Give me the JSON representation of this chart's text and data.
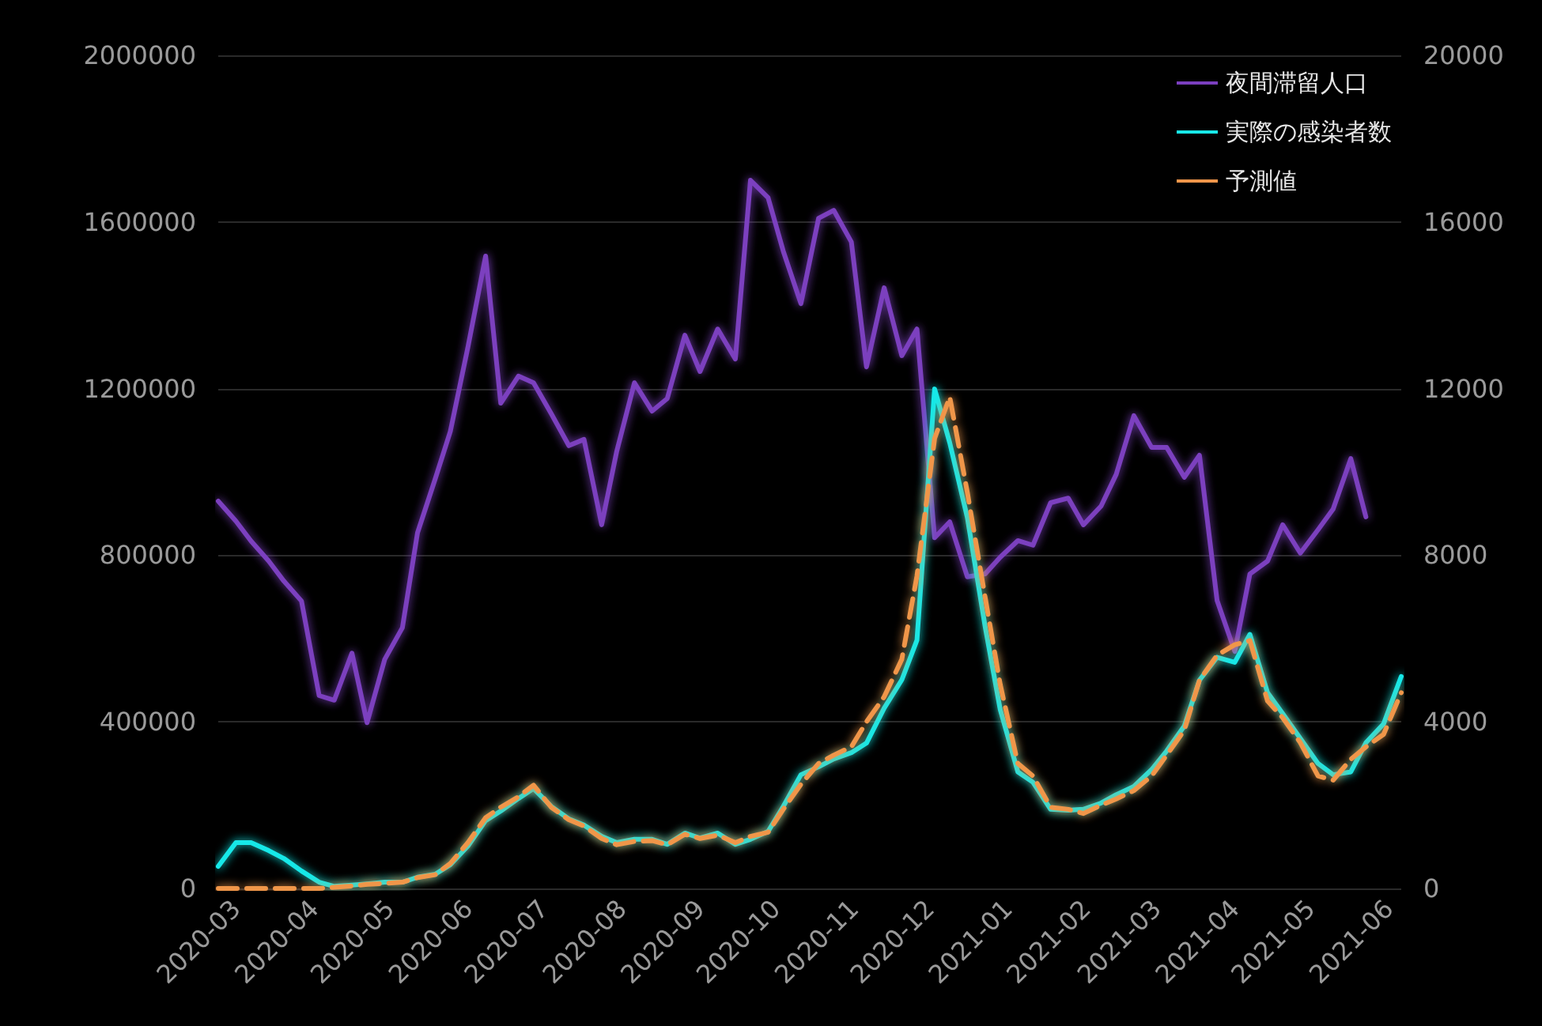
{
  "chart_data": {
    "type": "line",
    "x": [
      "2020-02-23",
      "2020-03-01",
      "2020-03-07",
      "2020-03-14",
      "2020-03-20",
      "2020-03-27",
      "2020-04-03",
      "2020-04-09",
      "2020-04-16",
      "2020-04-22",
      "2020-04-29",
      "2020-05-06",
      "2020-05-12",
      "2020-05-19",
      "2020-05-25",
      "2020-06-01",
      "2020-06-08",
      "2020-06-14",
      "2020-06-21",
      "2020-06-27",
      "2020-07-04",
      "2020-07-11",
      "2020-07-17",
      "2020-07-24",
      "2020-07-30",
      "2020-08-06",
      "2020-08-13",
      "2020-08-19",
      "2020-08-26",
      "2020-09-01",
      "2020-09-08",
      "2020-09-15",
      "2020-09-21",
      "2020-09-28",
      "2020-10-04",
      "2020-10-11",
      "2020-10-18",
      "2020-10-24",
      "2020-10-31",
      "2020-11-06",
      "2020-11-13",
      "2020-11-20",
      "2020-11-26",
      "2020-12-03",
      "2020-12-09",
      "2020-12-16",
      "2020-12-23",
      "2020-12-29",
      "2021-01-05",
      "2021-01-11",
      "2021-01-18",
      "2021-01-25",
      "2021-01-31",
      "2021-02-07",
      "2021-02-13",
      "2021-02-20",
      "2021-02-27",
      "2021-03-05",
      "2021-03-12",
      "2021-03-18",
      "2021-03-25",
      "2021-04-01",
      "2021-04-07",
      "2021-04-14",
      "2021-04-20",
      "2021-04-27",
      "2021-05-04",
      "2021-05-10",
      "2021-05-17",
      "2021-05-23",
      "2021-05-30",
      "2021-06-06"
    ],
    "series": [
      {
        "name": "夜間滞留人口",
        "color": "#7b3fbf",
        "values": [
          930000,
          882000,
          834000,
          786000,
          738000,
          690000,
          463000,
          452000,
          565000,
          398000,
          550000,
          626000,
          854000,
          983000,
          1097000,
          1300000,
          1518000,
          1165000,
          1230000,
          1214000,
          1140000,
          1063000,
          1078000,
          873000,
          1050000,
          1214000,
          1146000,
          1176000,
          1328000,
          1241000,
          1343000,
          1271000,
          1700000,
          1658000,
          1530000,
          1404000,
          1609000,
          1628000,
          1552000,
          1252000,
          1442000,
          1279000,
          1343000,
          842000,
          880000,
          748000,
          755000,
          795000,
          835000,
          824000,
          926000,
          937000,
          873000,
          918000,
          994000,
          1135000,
          1059000,
          1059000,
          987000,
          1040000,
          691000,
          569000,
          755000,
          786000,
          873000,
          805000,
          861000,
          911000,
          1032000,
          892000,
          null,
          null
        ]
      },
      {
        "name": "実際の感染者数",
        "color": "#18e8e8",
        "axis": "y2",
        "values": [
          530,
          1100,
          1100,
          910,
          720,
          420,
          150,
          50,
          80,
          110,
          150,
          150,
          270,
          340,
          570,
          1020,
          1630,
          1860,
          2160,
          2400,
          1970,
          1670,
          1520,
          1250,
          1100,
          1180,
          1180,
          1060,
          1330,
          1210,
          1330,
          1060,
          1180,
          1370,
          1970,
          2730,
          2920,
          3110,
          3260,
          3490,
          4330,
          5010,
          5960,
          11990,
          10700,
          8900,
          6300,
          4300,
          2800,
          2550,
          1900,
          1880,
          1900,
          2050,
          2250,
          2450,
          2850,
          3300,
          3900,
          5000,
          5550,
          5430,
          6100,
          4700,
          4200,
          3600,
          3000,
          2730,
          2800,
          3500,
          3950,
          5090
        ]
      },
      {
        "name": "予測値",
        "color": "#f0964a",
        "axis": "y2",
        "line_style": "dashed",
        "values": [
          0,
          0,
          0,
          0,
          0,
          0,
          0,
          30,
          60,
          100,
          120,
          150,
          260,
          330,
          600,
          1100,
          1700,
          1950,
          2200,
          2480,
          1950,
          1650,
          1500,
          1200,
          1050,
          1130,
          1150,
          1050,
          1300,
          1200,
          1280,
          1100,
          1250,
          1350,
          1900,
          2500,
          3000,
          3200,
          3400,
          4000,
          4600,
          5500,
          7500,
          10800,
          11800,
          9500,
          7000,
          4900,
          3000,
          2700,
          1950,
          1900,
          1800,
          2000,
          2150,
          2350,
          2700,
          3200,
          3800,
          5000,
          5600,
          5850,
          5950,
          4500,
          4100,
          3500,
          2700,
          2600,
          3100,
          3400,
          3700,
          4700
        ]
      }
    ],
    "xlim": [
      "2020-02-23",
      "2021-06-06"
    ],
    "xticks": [
      "2020-03",
      "2020-04",
      "2020-05",
      "2020-06",
      "2020-07",
      "2020-08",
      "2020-09",
      "2020-10",
      "2020-11",
      "2020-12",
      "2021-01",
      "2021-02",
      "2021-03",
      "2021-04",
      "2021-05",
      "2021-06"
    ],
    "ylim": [
      0,
      2000000
    ],
    "yticks": [
      0,
      400000,
      800000,
      1200000,
      1600000,
      2000000
    ],
    "y2lim": [
      0,
      20000
    ],
    "y2ticks": [
      0,
      4000,
      8000,
      12000,
      16000,
      20000
    ],
    "grid": "y",
    "legend": "top right",
    "marker": "none",
    "line_style": "solid"
  }
}
